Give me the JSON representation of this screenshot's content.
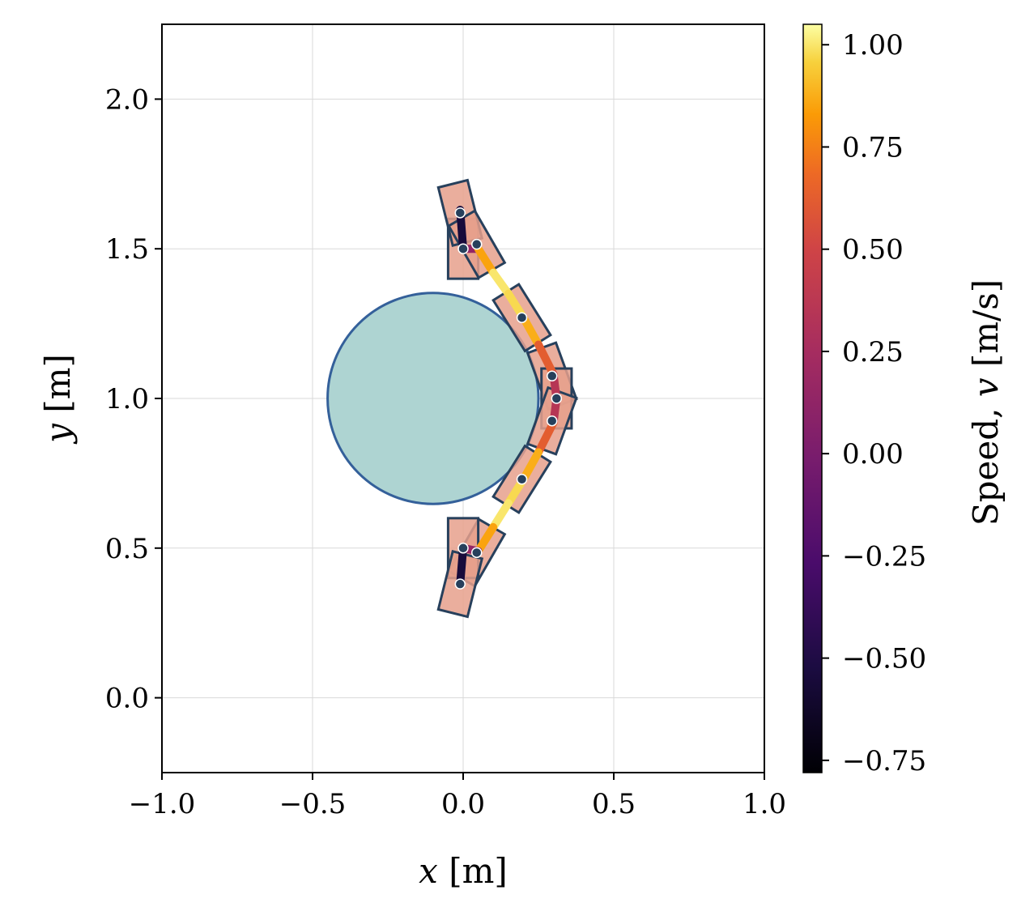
{
  "chart_data": {
    "type": "scatter",
    "title": "",
    "xlabel": {
      "var": "x",
      "unit": " [m]"
    },
    "ylabel": {
      "var": "y",
      "unit": " [m]"
    },
    "xlim": [
      -1.0,
      1.0
    ],
    "ylim": [
      -0.25,
      2.25
    ],
    "xticks": [
      -1.0,
      -0.5,
      0.0,
      0.5,
      1.0
    ],
    "yticks": [
      0.0,
      0.5,
      1.0,
      1.5,
      2.0
    ],
    "xtick_labels": [
      "−1.0",
      "−0.5",
      "0.0",
      "0.5",
      "1.0"
    ],
    "ytick_labels": [
      "0.0",
      "0.5",
      "1.0",
      "1.5",
      "2.0"
    ],
    "grid": true,
    "obstacle": {
      "center": [
        -0.1,
        1.0
      ],
      "radius": 0.35,
      "fill": "#aed4d2",
      "edge": "#34609a"
    },
    "trajectory": {
      "points": [
        [
          -0.01,
          1.63
        ],
        [
          0.0,
          1.5
        ],
        [
          0.05,
          1.5
        ],
        [
          0.1,
          1.42
        ],
        [
          0.15,
          1.35
        ],
        [
          0.2,
          1.27
        ],
        [
          0.25,
          1.18
        ],
        [
          0.3,
          1.08
        ],
        [
          0.31,
          1.0
        ],
        [
          0.3,
          0.92
        ],
        [
          0.25,
          0.82
        ],
        [
          0.2,
          0.73
        ],
        [
          0.15,
          0.65
        ],
        [
          0.1,
          0.57
        ],
        [
          0.05,
          0.49
        ],
        [
          0.0,
          0.5
        ],
        [
          -0.01,
          0.38
        ]
      ],
      "speeds": [
        -0.7,
        -0.4,
        0.7,
        1.0,
        1.0,
        0.95,
        0.8,
        0.45,
        0.25,
        0.45,
        0.8,
        0.95,
        1.0,
        1.0,
        0.7,
        -0.4,
        -0.7
      ]
    },
    "vehicle_poses": [
      {
        "x": 0.0,
        "y": 1.5,
        "theta_deg": 90
      },
      {
        "x": -0.01,
        "y": 1.62,
        "theta_deg": 104
      },
      {
        "x": 0.045,
        "y": 1.515,
        "theta_deg": 120
      },
      {
        "x": 0.195,
        "y": 1.27,
        "theta_deg": 122
      },
      {
        "x": 0.295,
        "y": 1.075,
        "theta_deg": 110
      },
      {
        "x": 0.31,
        "y": 1.0,
        "theta_deg": 90
      },
      {
        "x": 0.295,
        "y": 0.925,
        "theta_deg": 70
      },
      {
        "x": 0.195,
        "y": 0.73,
        "theta_deg": 58
      },
      {
        "x": 0.045,
        "y": 0.485,
        "theta_deg": 60
      },
      {
        "x": 0.0,
        "y": 0.5,
        "theta_deg": 90
      },
      {
        "x": -0.01,
        "y": 0.38,
        "theta_deg": 76
      }
    ],
    "vehicle_style": {
      "fill": "#e6a08c",
      "edge": "#27405c",
      "marker": "#27405c"
    },
    "colorbar": {
      "label": {
        "prefix": "Speed, ",
        "var": "v",
        "unit": " [m/s]"
      },
      "range": [
        -0.78,
        1.05
      ],
      "ticks": [
        1.0,
        0.75,
        0.5,
        0.25,
        0.0,
        -0.25,
        -0.5,
        -0.75
      ],
      "tick_labels": [
        "1.00",
        "0.75",
        "0.50",
        "0.25",
        "0.00",
        "−0.25",
        "−0.50",
        "−0.75"
      ],
      "colormap": "inferno"
    }
  }
}
